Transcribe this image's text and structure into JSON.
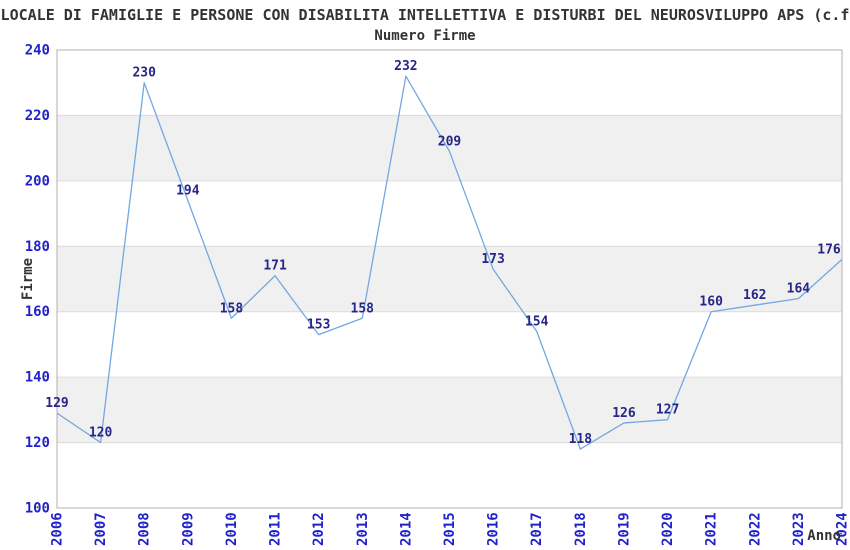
{
  "chart_data": {
    "type": "line",
    "title": "LOCALE DI FAMIGLIE E PERSONE CON DISABILITA INTELLETTIVA E DISTURBI DEL NEUROSVILUPPO APS (c.f",
    "subtitle": "Numero Firme",
    "xlabel": "Anno",
    "ylabel": "Firme",
    "categories": [
      "2006",
      "2007",
      "2008",
      "2009",
      "2010",
      "2011",
      "2012",
      "2013",
      "2014",
      "2015",
      "2016",
      "2017",
      "2018",
      "2019",
      "2020",
      "2021",
      "2022",
      "2023",
      "2024"
    ],
    "values": [
      129,
      120,
      230,
      194,
      158,
      171,
      153,
      158,
      232,
      209,
      173,
      154,
      118,
      126,
      127,
      160,
      162,
      164,
      176
    ],
    "data_labels": [
      "129",
      "120",
      "230",
      "194",
      "158",
      "171",
      "153",
      "158",
      "232",
      "209",
      "173",
      "154",
      "118",
      "126",
      "127",
      "160",
      "162",
      "164",
      "176"
    ],
    "ylim": [
      100,
      240
    ],
    "ytick_step": 20,
    "yticks": [
      "100",
      "120",
      "140",
      "160",
      "180",
      "200",
      "220",
      "240"
    ],
    "grid": "horizontal-bands",
    "legend": "none",
    "colors": {
      "line": "#74A7E0",
      "data_label": "#262688",
      "tick_label": "#2222CC",
      "text": "#333333",
      "band": "#F0F0F0",
      "gridline": "#DCDCDC",
      "border": "#B0B0B0",
      "background": "#FFFFFF"
    }
  }
}
